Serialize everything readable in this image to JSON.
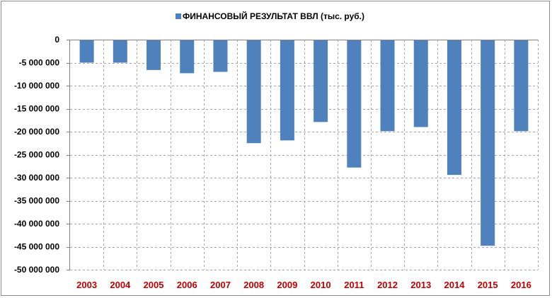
{
  "chart_data": {
    "type": "bar",
    "categories": [
      "2003",
      "2004",
      "2005",
      "2006",
      "2007",
      "2008",
      "2009",
      "2010",
      "2011",
      "2012",
      "2013",
      "2014",
      "2015",
      "2016"
    ],
    "series": [
      {
        "name": "ФИНАНСОВЫЙ РЕЗУЛЬТАТ ВВЛ (тыс. руб.)",
        "values": [
          -5000000,
          -5000000,
          -6600000,
          -7300000,
          -7000000,
          -22500000,
          -21900000,
          -17900000,
          -27800000,
          -19900000,
          -19000000,
          -29400000,
          -44800000,
          -19900000
        ]
      }
    ],
    "ylim": [
      -50000000,
      0
    ],
    "yticks": [
      0,
      -5000000,
      -10000000,
      -15000000,
      -20000000,
      -25000000,
      -30000000,
      -35000000,
      -40000000,
      -45000000,
      -50000000
    ],
    "ytick_labels": [
      "0",
      "-5 000 000",
      "-10 000 000",
      "-15 000 000",
      "-20 000 000",
      "-25 000 000",
      "-30 000 000",
      "-35 000 000",
      "-40 000 000",
      "-45 000 000",
      "-50 000 000"
    ],
    "title": "",
    "xlabel": "",
    "ylabel": "",
    "grid": true,
    "legend_position": "top-center",
    "colors": {
      "bar": "#4f81bd",
      "xtick": "#c00000",
      "grid": "#a6a6a6",
      "axis": "#808080"
    }
  }
}
